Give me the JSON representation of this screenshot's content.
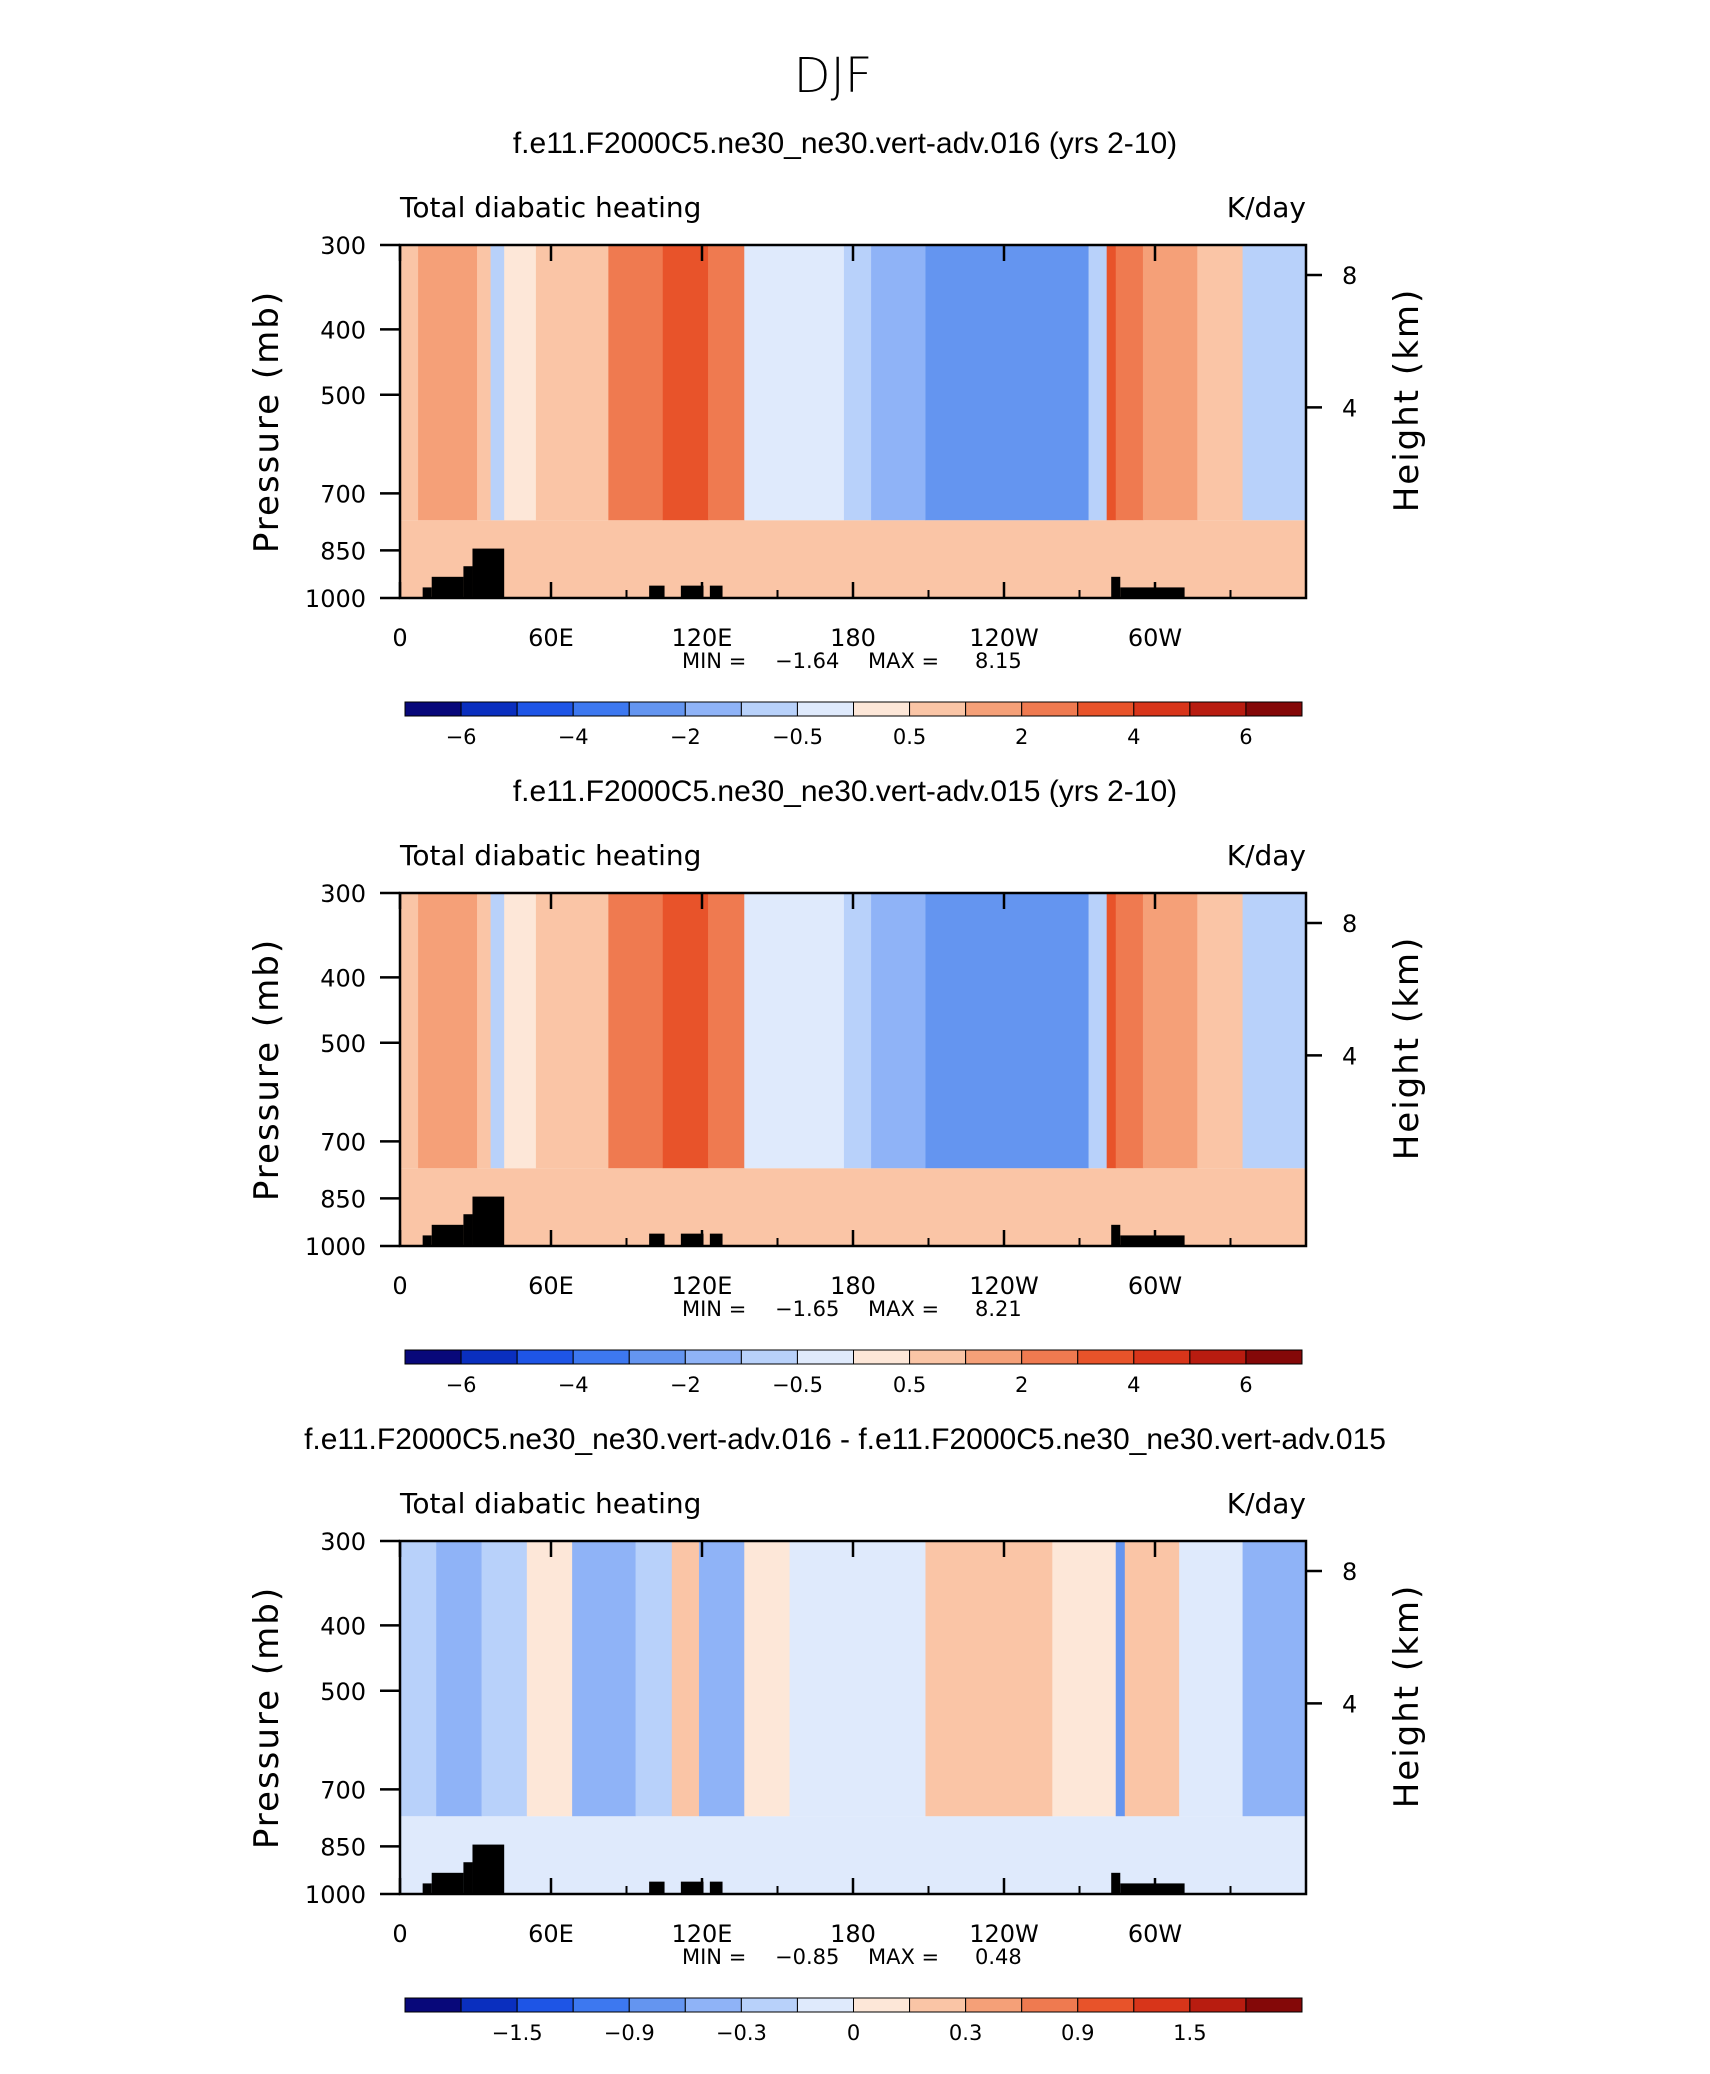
{
  "figure": {
    "title": "DJF",
    "colors": {
      "frame": "#000000",
      "land_mask": "#000000",
      "palette": [
        "#08087a",
        "#0a2fbf",
        "#1e55e6",
        "#3d78f0",
        "#6495f0",
        "#8fb3f7",
        "#b8d1fa",
        "#dfeafc",
        "#fde7d8",
        "#fac5a6",
        "#f5a078",
        "#ef7a50",
        "#e8532a",
        "#d8351a",
        "#b81c10",
        "#840808"
      ]
    }
  },
  "chart_data": [
    {
      "type": "heatmap",
      "title": "f.e11.F2000C5.ne30_ne30.vert-adv.016 (yrs 2-10)",
      "left_label": "Total diabatic heating",
      "right_label": "K/day",
      "ylabel": "Pressure (mb)",
      "y2label": "Height (km)",
      "x_ticks": [
        "0",
        "60E",
        "120E",
        "180",
        "120W",
        "60W"
      ],
      "y_ticks": [
        "300",
        "400",
        "500",
        "700",
        "850",
        "1000"
      ],
      "y2_ticks": [
        "8",
        "4"
      ],
      "ylim": [
        1000,
        300
      ],
      "min_label": "MIN =",
      "min_value": "−1.64",
      "max_label": "MAX =",
      "max_value": "8.15",
      "colorbar_ticks": [
        "−6",
        "−4",
        "−2",
        "−0.5",
        "0.5",
        "2",
        "4",
        "6"
      ]
    },
    {
      "type": "heatmap",
      "title": "f.e11.F2000C5.ne30_ne30.vert-adv.015 (yrs 2-10)",
      "left_label": "Total diabatic heating",
      "right_label": "K/day",
      "ylabel": "Pressure (mb)",
      "y2label": "Height (km)",
      "x_ticks": [
        "0",
        "60E",
        "120E",
        "180",
        "120W",
        "60W"
      ],
      "y_ticks": [
        "300",
        "400",
        "500",
        "700",
        "850",
        "1000"
      ],
      "y2_ticks": [
        "8",
        "4"
      ],
      "ylim": [
        1000,
        300
      ],
      "min_label": "MIN =",
      "min_value": "−1.65",
      "max_label": "MAX =",
      "max_value": "8.21",
      "colorbar_ticks": [
        "−6",
        "−4",
        "−2",
        "−0.5",
        "0.5",
        "2",
        "4",
        "6"
      ]
    },
    {
      "type": "heatmap",
      "title": "f.e11.F2000C5.ne30_ne30.vert-adv.016 - f.e11.F2000C5.ne30_ne30.vert-adv.015",
      "left_label": "Total diabatic heating",
      "right_label": "K/day",
      "ylabel": "Pressure (mb)",
      "y2label": "Height (km)",
      "x_ticks": [
        "0",
        "60E",
        "120E",
        "180",
        "120W",
        "60W"
      ],
      "y_ticks": [
        "300",
        "400",
        "500",
        "700",
        "850",
        "1000"
      ],
      "y2_ticks": [
        "8",
        "4"
      ],
      "ylim": [
        1000,
        300
      ],
      "min_label": "MIN =",
      "min_value": "−0.85",
      "max_label": "MAX =",
      "max_value": "0.48",
      "colorbar_ticks": [
        "−1.5",
        "−0.9",
        "−0.3",
        "0",
        "0.3",
        "0.9",
        "1.5"
      ]
    }
  ]
}
